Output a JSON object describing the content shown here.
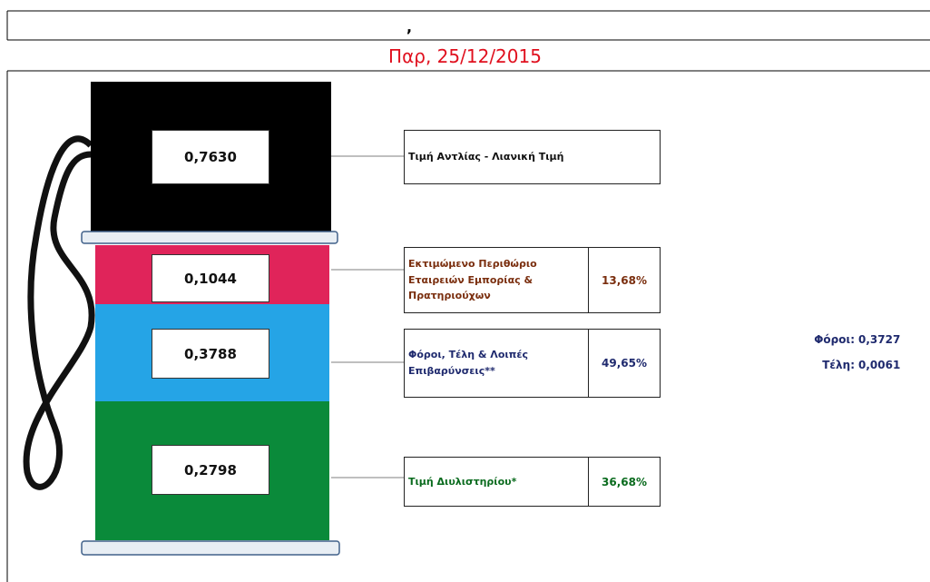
{
  "header": {
    "mark": ",",
    "date": "Παρ, 25/12/2015"
  },
  "segments": [
    {
      "value": "0,7630",
      "label": "Τιμή Αντλίας - Λιανική Τιμή"
    },
    {
      "value": "0,1044",
      "label": "Εκτιμώμενο Περιθώριο Εταιρειών Εμπορίας & Πρατηριούχων",
      "percent": "13,68%"
    },
    {
      "value": "0,3788",
      "label": "Φόροι, Τέλη & Λοιπές Επιβαρύνσεις**",
      "percent": "49,65%"
    },
    {
      "value": "0,2798",
      "label": "Τιμή Διυλιστηρίου*",
      "percent": "36,68%"
    }
  ],
  "taxes": [
    {
      "label": "Φόροι:",
      "value": "0,3727"
    },
    {
      "label": "Τέλη:",
      "value": "0,0061"
    }
  ]
}
